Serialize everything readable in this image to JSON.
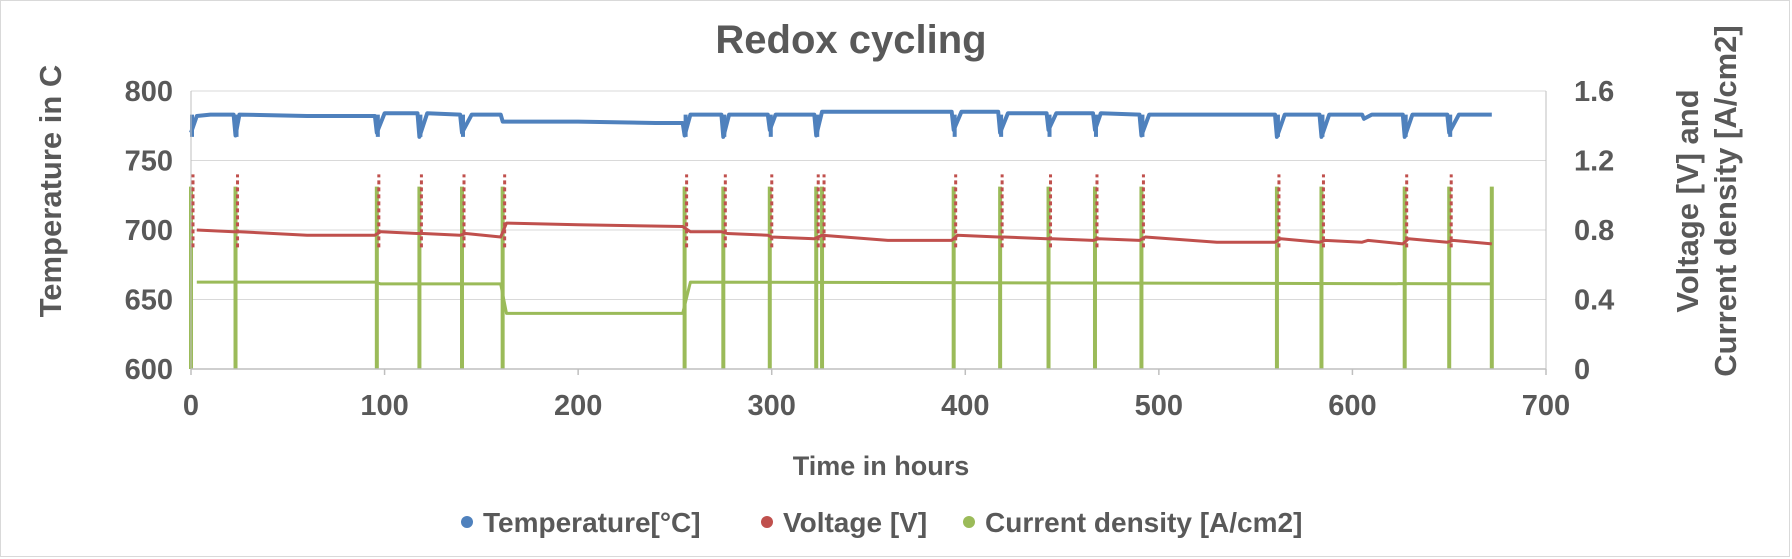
{
  "chart_data": {
    "type": "scatter",
    "title": "Redox cycling",
    "xlabel": "Time in hours",
    "ylabel_left": "Temperature in C",
    "ylabel_right_line1": "Voltage [V] and",
    "ylabel_right_line2": "Current density [A/cm2]",
    "xlim": [
      0,
      700
    ],
    "ylim_left": [
      600,
      800
    ],
    "ylim_right": [
      0,
      1.6
    ],
    "x_ticks": [
      "0",
      "100",
      "200",
      "300",
      "400",
      "500",
      "600",
      "700"
    ],
    "y_left_ticks": [
      "600",
      "650",
      "700",
      "750",
      "800"
    ],
    "y_right_ticks": [
      "0",
      "0.4",
      "0.8",
      "1.2",
      "1.6"
    ],
    "grid": true,
    "legend_position": "bottom",
    "series": [
      {
        "name": "Temperature[°C]",
        "axis": "left",
        "color": "#4f81bd",
        "points": [
          [
            0,
            770
          ],
          [
            3,
            782
          ],
          [
            10,
            783
          ],
          [
            22,
            783
          ],
          [
            23,
            768
          ],
          [
            25,
            783
          ],
          [
            60,
            782
          ],
          [
            95,
            782
          ],
          [
            96,
            770
          ],
          [
            100,
            784
          ],
          [
            117,
            784
          ],
          [
            118,
            767
          ],
          [
            122,
            784
          ],
          [
            139,
            783
          ],
          [
            140,
            770
          ],
          [
            145,
            783
          ],
          [
            160,
            783
          ],
          [
            161,
            778
          ],
          [
            200,
            778
          ],
          [
            240,
            777
          ],
          [
            254,
            777
          ],
          [
            255,
            768
          ],
          [
            258,
            783
          ],
          [
            274,
            783
          ],
          [
            275,
            767
          ],
          [
            278,
            783
          ],
          [
            298,
            783
          ],
          [
            299,
            772
          ],
          [
            302,
            783
          ],
          [
            322,
            783
          ],
          [
            323,
            768
          ],
          [
            326,
            785
          ],
          [
            360,
            785
          ],
          [
            393,
            785
          ],
          [
            394,
            772
          ],
          [
            398,
            785
          ],
          [
            417,
            785
          ],
          [
            418,
            770
          ],
          [
            422,
            784
          ],
          [
            442,
            784
          ],
          [
            443,
            772
          ],
          [
            447,
            784
          ],
          [
            466,
            784
          ],
          [
            467,
            772
          ],
          [
            470,
            784
          ],
          [
            490,
            783
          ],
          [
            491,
            768
          ],
          [
            495,
            783
          ],
          [
            530,
            783
          ],
          [
            560,
            783
          ],
          [
            561,
            767
          ],
          [
            565,
            783
          ],
          [
            583,
            783
          ],
          [
            584,
            767
          ],
          [
            588,
            783
          ],
          [
            605,
            783
          ],
          [
            606,
            780
          ],
          [
            610,
            783
          ],
          [
            626,
            783
          ],
          [
            627,
            767
          ],
          [
            631,
            783
          ],
          [
            649,
            783
          ],
          [
            650,
            770
          ],
          [
            655,
            783
          ],
          [
            672,
            783
          ]
        ],
        "dips": [
          0,
          23,
          96,
          118,
          140,
          255,
          275,
          299,
          323,
          394,
          418,
          443,
          467,
          491,
          561,
          584,
          627,
          650
        ]
      },
      {
        "name": "Voltage [V]",
        "axis": "right",
        "color": "#c0504d",
        "points": [
          [
            3,
            0.8
          ],
          [
            22,
            0.79
          ],
          [
            25,
            0.79
          ],
          [
            60,
            0.77
          ],
          [
            95,
            0.77
          ],
          [
            98,
            0.79
          ],
          [
            117,
            0.78
          ],
          [
            120,
            0.78
          ],
          [
            139,
            0.77
          ],
          [
            142,
            0.78
          ],
          [
            160,
            0.76
          ],
          [
            163,
            0.84
          ],
          [
            200,
            0.83
          ],
          [
            254,
            0.82
          ],
          [
            258,
            0.79
          ],
          [
            274,
            0.79
          ],
          [
            277,
            0.78
          ],
          [
            298,
            0.77
          ],
          [
            300,
            0.76
          ],
          [
            322,
            0.75
          ],
          [
            326,
            0.77
          ],
          [
            360,
            0.74
          ],
          [
            393,
            0.74
          ],
          [
            396,
            0.77
          ],
          [
            417,
            0.76
          ],
          [
            420,
            0.76
          ],
          [
            442,
            0.75
          ],
          [
            445,
            0.75
          ],
          [
            466,
            0.74
          ],
          [
            469,
            0.75
          ],
          [
            490,
            0.74
          ],
          [
            493,
            0.76
          ],
          [
            530,
            0.73
          ],
          [
            560,
            0.73
          ],
          [
            563,
            0.75
          ],
          [
            583,
            0.73
          ],
          [
            586,
            0.74
          ],
          [
            605,
            0.73
          ],
          [
            608,
            0.74
          ],
          [
            626,
            0.72
          ],
          [
            629,
            0.75
          ],
          [
            649,
            0.73
          ],
          [
            652,
            0.74
          ],
          [
            672,
            0.72
          ]
        ],
        "spike_max": 1.12
      },
      {
        "name": "Current density [A/cm2]",
        "axis": "right",
        "color": "#9bbb59",
        "points": [
          [
            3,
            0.5
          ],
          [
            95,
            0.5
          ],
          [
            98,
            0.49
          ],
          [
            117,
            0.49
          ],
          [
            120,
            0.49
          ],
          [
            160,
            0.49
          ],
          [
            163,
            0.32
          ],
          [
            254,
            0.32
          ],
          [
            258,
            0.5
          ],
          [
            672,
            0.49
          ]
        ],
        "spikes": [
          0,
          23,
          96,
          118,
          140,
          161,
          255,
          275,
          299,
          323,
          326,
          394,
          418,
          443,
          467,
          491,
          561,
          584,
          627,
          650,
          672
        ],
        "spike_max": 1.05
      }
    ]
  }
}
